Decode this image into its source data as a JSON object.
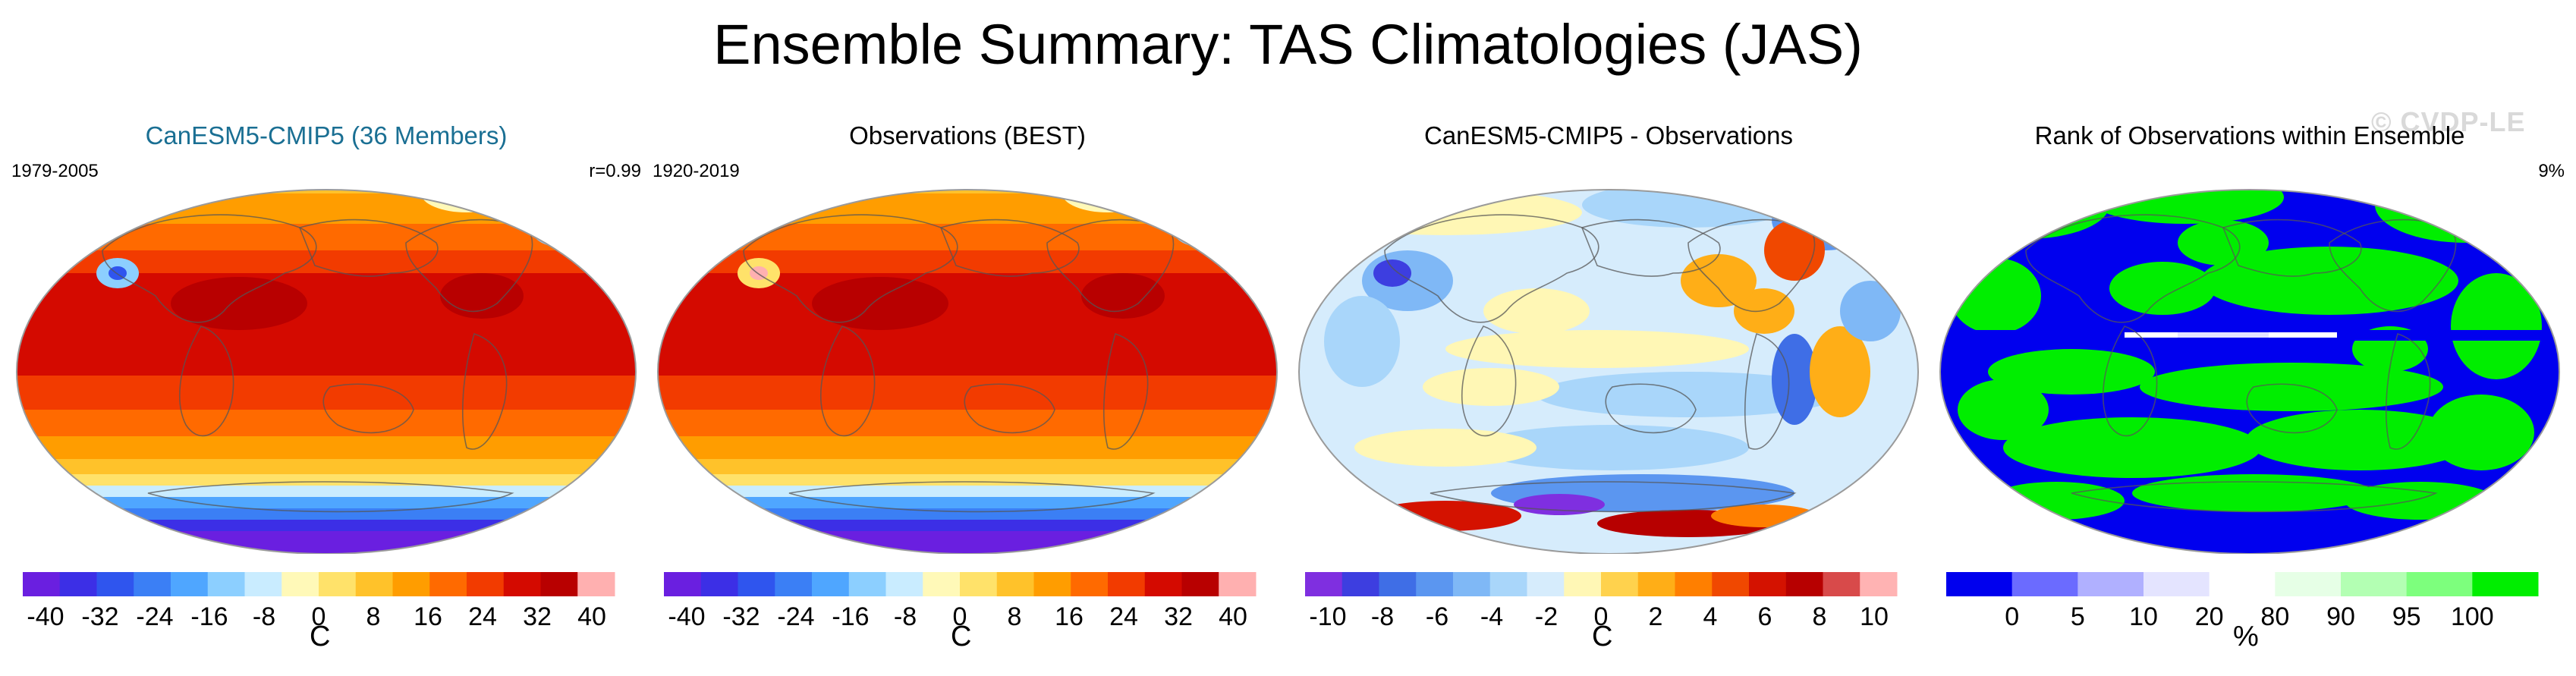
{
  "title": "Ensemble Summary: TAS Climatologies (JAS)",
  "watermark": "© CVDP-LE",
  "colors": {
    "ens_title": "#1a6f93",
    "temp_scale": [
      "#6a1fe0",
      "#3c2fe6",
      "#2f55ee",
      "#3b7ff5",
      "#4fa6ff",
      "#8ccfff",
      "#c9ecff",
      "#fff9b8",
      "#ffe26a",
      "#ffc22a",
      "#ff9d00",
      "#ff6a00",
      "#f23b00",
      "#d40a00",
      "#b80000",
      "#ffb0b0"
    ],
    "diff_scale": [
      "#7f2fe0",
      "#3d3ee0",
      "#3f6ee6",
      "#5b96f0",
      "#7fb8f6",
      "#a9d6fa",
      "#d6ecfc",
      "#fff7b5",
      "#ffd24d",
      "#ffae17",
      "#ff7f00",
      "#f04800",
      "#d41200",
      "#b70000",
      "#d84a4a",
      "#ffb3b3"
    ],
    "rank_scale": [
      "#0000ee",
      "#6b6bff",
      "#b0b0ff",
      "#e4e4ff",
      "#ffffff",
      "#e6ffe6",
      "#b3ffb3",
      "#7dff7d",
      "#00ee00"
    ]
  },
  "panels": [
    {
      "title": "CanESM5-CMIP5 (36 Members)",
      "left_label": "1979-2005",
      "right_label": "r=0.99",
      "map_style": "temperature",
      "colorbar": {
        "ticks": [
          "-40",
          "-32",
          "-24",
          "-16",
          "-8",
          "0",
          "8",
          "16",
          "24",
          "32",
          "40"
        ],
        "unit": "C",
        "levels": [
          -40,
          40
        ]
      }
    },
    {
      "title": "Observations (BEST)",
      "left_label": "1920-2019",
      "right_label": "",
      "map_style": "temperature",
      "colorbar": {
        "ticks": [
          "-40",
          "-32",
          "-24",
          "-16",
          "-8",
          "0",
          "8",
          "16",
          "24",
          "32",
          "40"
        ],
        "unit": "C",
        "levels": [
          -40,
          40
        ]
      }
    },
    {
      "title": "CanESM5-CMIP5 - Observations",
      "left_label": "",
      "right_label": "",
      "map_style": "difference",
      "colorbar": {
        "ticks": [
          "-10",
          "-8",
          "-6",
          "-4",
          "-2",
          "0",
          "2",
          "4",
          "6",
          "8",
          "10"
        ],
        "unit": "C",
        "levels": [
          -10,
          10
        ]
      }
    },
    {
      "title": "Rank of Observations within Ensemble",
      "left_label": "",
      "right_label": "9%",
      "map_style": "rank",
      "colorbar": {
        "ticks": [
          "0",
          "5",
          "10",
          "20",
          "80",
          "90",
          "95",
          "100"
        ],
        "unit": "%",
        "levels": [
          0,
          100
        ]
      }
    }
  ]
}
